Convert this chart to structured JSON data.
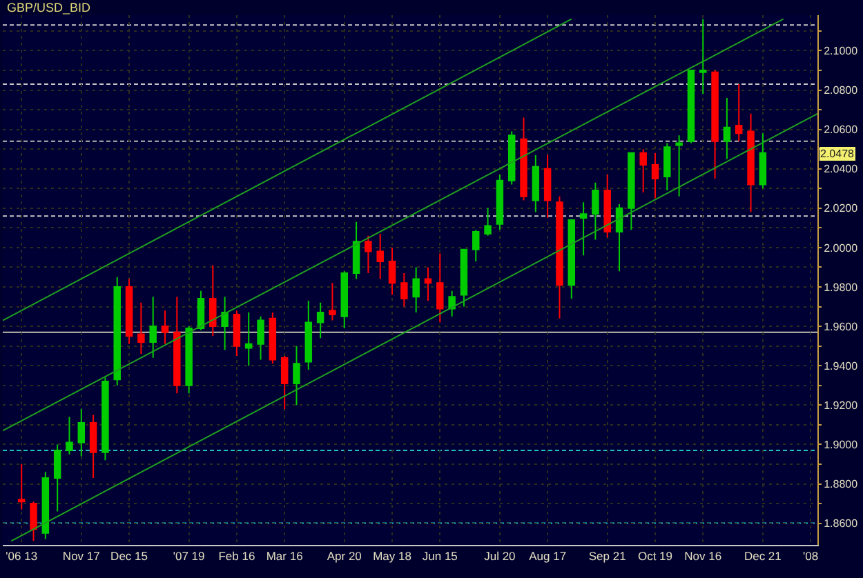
{
  "chart_data": {
    "type": "candlestick",
    "title": "GBP/USD_BID",
    "x": [
      "2006-10-13",
      "2006-10-20",
      "2006-10-27",
      "2006-11-03",
      "2006-11-10",
      "2006-11-17",
      "2006-11-24",
      "2006-12-01",
      "2006-12-08",
      "2006-12-15",
      "2006-12-22",
      "2006-12-29",
      "2007-01-05",
      "2007-01-12",
      "2007-01-19",
      "2007-01-26",
      "2007-02-02",
      "2007-02-09",
      "2007-02-16",
      "2007-02-23",
      "2007-03-02",
      "2007-03-09",
      "2007-03-16",
      "2007-03-23",
      "2007-03-30",
      "2007-04-06",
      "2007-04-13",
      "2007-04-20",
      "2007-04-27",
      "2007-05-04",
      "2007-05-11",
      "2007-05-18",
      "2007-05-25",
      "2007-06-01",
      "2007-06-08",
      "2007-06-15",
      "2007-06-22",
      "2007-06-29",
      "2007-07-06",
      "2007-07-13",
      "2007-07-20",
      "2007-07-27",
      "2007-08-03",
      "2007-08-10",
      "2007-08-17",
      "2007-08-24",
      "2007-08-31",
      "2007-09-07",
      "2007-09-14",
      "2007-09-21",
      "2007-09-28",
      "2007-10-05",
      "2007-10-12",
      "2007-10-19",
      "2007-10-26",
      "2007-11-02",
      "2007-11-09",
      "2007-11-16",
      "2007-11-23",
      "2007-11-30",
      "2007-12-07",
      "2007-12-14",
      "2007-12-21"
    ],
    "ohlc": [
      [
        1.872,
        1.89,
        1.867,
        1.871
      ],
      [
        1.87,
        1.871,
        1.851,
        1.857
      ],
      [
        1.855,
        1.886,
        1.852,
        1.883
      ],
      [
        1.883,
        1.9,
        1.866,
        1.897
      ],
      [
        1.897,
        1.914,
        1.895,
        1.901
      ],
      [
        1.901,
        1.918,
        1.894,
        1.911
      ],
      [
        1.911,
        1.915,
        1.883,
        1.896
      ],
      [
        1.896,
        1.934,
        1.892,
        1.932
      ],
      [
        1.933,
        1.985,
        1.93,
        1.98
      ],
      [
        1.98,
        1.984,
        1.951,
        1.955
      ],
      [
        1.956,
        1.972,
        1.946,
        1.952
      ],
      [
        1.952,
        1.975,
        1.944,
        1.96
      ],
      [
        1.96,
        1.968,
        1.951,
        1.957
      ],
      [
        1.957,
        1.975,
        1.926,
        1.93
      ],
      [
        1.93,
        1.96,
        1.926,
        1.959
      ],
      [
        1.959,
        1.978,
        1.958,
        1.974
      ],
      [
        1.974,
        1.991,
        1.955,
        1.96
      ],
      [
        1.96,
        1.975,
        1.948,
        1.967
      ],
      [
        1.966,
        1.968,
        1.945,
        1.95
      ],
      [
        1.949,
        1.967,
        1.94,
        1.951
      ],
      [
        1.951,
        1.965,
        1.943,
        1.963
      ],
      [
        1.964,
        1.967,
        1.941,
        1.943
      ],
      [
        1.944,
        1.945,
        1.918,
        1.931
      ],
      [
        1.931,
        1.95,
        1.92,
        1.941
      ],
      [
        1.942,
        1.973,
        1.938,
        1.962
      ],
      [
        1.962,
        1.972,
        1.954,
        1.967
      ],
      [
        1.968,
        1.982,
        1.963,
        1.966
      ],
      [
        1.965,
        1.988,
        1.959,
        1.987
      ],
      [
        1.987,
        2.013,
        1.984,
        2.003
      ],
      [
        2.003,
        2.006,
        1.987,
        1.998
      ],
      [
        1.998,
        2.007,
        1.984,
        1.993
      ],
      [
        1.993,
        2.0,
        1.976,
        1.982
      ],
      [
        1.982,
        1.987,
        1.97,
        1.974
      ],
      [
        1.975,
        1.99,
        1.967,
        1.984
      ],
      [
        1.984,
        1.99,
        1.973,
        1.982
      ],
      [
        1.982,
        1.997,
        1.962,
        1.969
      ],
      [
        1.969,
        1.978,
        1.965,
        1.975
      ],
      [
        1.976,
        1.999,
        1.97,
        1.999
      ],
      [
        1.999,
        2.009,
        1.993,
        2.008
      ],
      [
        2.007,
        2.02,
        2.006,
        2.011
      ],
      [
        2.012,
        2.037,
        2.009,
        2.034
      ],
      [
        2.034,
        2.059,
        2.032,
        2.057
      ],
      [
        2.055,
        2.066,
        2.024,
        2.026
      ],
      [
        2.024,
        2.047,
        2.018,
        2.041
      ],
      [
        2.04,
        2.047,
        2.015,
        2.024
      ],
      [
        2.023,
        2.026,
        1.964,
        1.981
      ],
      [
        1.981,
        2.014,
        1.974,
        2.014
      ],
      [
        2.015,
        2.023,
        1.996,
        2.017
      ],
      [
        2.017,
        2.033,
        2.004,
        2.029
      ],
      [
        2.029,
        2.037,
        2.005,
        2.008
      ],
      [
        2.008,
        2.022,
        1.988,
        2.02
      ],
      [
        2.02,
        2.048,
        2.009,
        2.048
      ],
      [
        2.048,
        2.05,
        2.028,
        2.042
      ],
      [
        2.042,
        2.048,
        2.025,
        2.035
      ],
      [
        2.036,
        2.053,
        2.029,
        2.051
      ],
      [
        2.052,
        2.057,
        2.026,
        2.053
      ],
      [
        2.054,
        2.09,
        2.053,
        2.09
      ],
      [
        2.089,
        2.116,
        2.078,
        2.09
      ],
      [
        2.089,
        2.09,
        2.035,
        2.054
      ],
      [
        2.054,
        2.076,
        2.045,
        2.061
      ],
      [
        2.062,
        2.083,
        2.054,
        2.058
      ],
      [
        2.059,
        2.068,
        2.018,
        2.032
      ],
      [
        2.032,
        2.058,
        2.03,
        2.048
      ]
    ],
    "colors": [
      "#ff0000",
      "#ff0000",
      "#00cc00",
      "#00cc00",
      "#00cc00",
      "#00cc00",
      "#ff0000",
      "#00cc00",
      "#00cc00",
      "#ff0000",
      "#ff0000",
      "#00cc00",
      "#ff0000",
      "#ff0000",
      "#00cc00",
      "#00cc00",
      "#ff0000",
      "#00cc00",
      "#ff0000",
      "#00cc00",
      "#00cc00",
      "#ff0000",
      "#ff0000",
      "#00cc00",
      "#00cc00",
      "#00cc00",
      "#ff0000",
      "#00cc00",
      "#00cc00",
      "#ff0000",
      "#ff0000",
      "#ff0000",
      "#ff0000",
      "#00cc00",
      "#ff0000",
      "#ff0000",
      "#00cc00",
      "#00cc00",
      "#00cc00",
      "#00cc00",
      "#00cc00",
      "#00cc00",
      "#ff0000",
      "#00cc00",
      "#ff0000",
      "#ff0000",
      "#00cc00",
      "#00cc00",
      "#00cc00",
      "#ff0000",
      "#00cc00",
      "#00cc00",
      "#ff0000",
      "#ff0000",
      "#00cc00",
      "#00cc00",
      "#00cc00",
      "#00cc00",
      "#ff0000",
      "#00cc00",
      "#ff0000",
      "#ff0000",
      "#00cc00"
    ],
    "series": [
      {
        "type": "line",
        "color": "#1fa01f",
        "x": [
          "2006-10-02",
          "2007-08-31"
        ],
        "values": [
          1.963,
          2.116
        ]
      },
      {
        "type": "line",
        "color": "#1fa01f",
        "x": [
          "2006-10-02",
          "2008-01-02"
        ],
        "values": [
          1.907,
          2.116
        ]
      },
      {
        "type": "line",
        "color": "#1fa01f",
        "x": [
          "2006-10-07",
          "2008-01-22"
        ],
        "values": [
          1.851,
          2.068
        ]
      }
    ],
    "ref_lines": [
      {
        "axis": "y",
        "value": 2.113,
        "color": "#c8c8c8",
        "line_style": "dashed"
      },
      {
        "axis": "y",
        "value": 2.083,
        "color": "#c8c8c8",
        "line_style": "dashed"
      },
      {
        "axis": "y",
        "value": 2.054,
        "color": "#b8b8b0",
        "line_style": "dashed"
      },
      {
        "axis": "y",
        "value": 2.016,
        "color": "#c8c8c8",
        "line_style": "dashed"
      },
      {
        "axis": "y",
        "value": 1.957,
        "color": "#c0c0b0",
        "line_style": "solid"
      },
      {
        "axis": "y",
        "value": 1.897,
        "color": "#20c0c0",
        "line_style": "dashed"
      },
      {
        "axis": "y",
        "value": 1.86,
        "color": "#20c0c0",
        "line_style": "dashed"
      }
    ],
    "annotations": [
      {
        "text": "2.0478",
        "y": 2.0478
      }
    ],
    "xlim": [
      "2006-10-02",
      "2008-01-22"
    ],
    "xticks": [
      {
        "value": "2006-10-13",
        "label": "'06 13"
      },
      {
        "value": "2006-11-17",
        "label": "Nov 17"
      },
      {
        "value": "2006-12-15",
        "label": "Dec 15"
      },
      {
        "value": "2007-01-19",
        "label": "'07 19"
      },
      {
        "value": "2007-02-16",
        "label": "Feb 16"
      },
      {
        "value": "2007-03-16",
        "label": "Mar 16"
      },
      {
        "value": "2007-04-20",
        "label": "Apr 20"
      },
      {
        "value": "2007-05-18",
        "label": "May 18"
      },
      {
        "value": "2007-06-15",
        "label": "Jun 15"
      },
      {
        "value": "2007-07-20",
        "label": "Jul 20"
      },
      {
        "value": "2007-08-17",
        "label": "Aug 17"
      },
      {
        "value": "2007-09-21",
        "label": "Sep 21"
      },
      {
        "value": "2007-10-19",
        "label": "Oct 19"
      },
      {
        "value": "2007-11-16",
        "label": "Nov 16"
      },
      {
        "value": "2007-12-21",
        "label": "Dec 21"
      },
      {
        "value": "2008-01-18",
        "label": "'08"
      }
    ],
    "ylim": [
      1.849,
      2.118
    ],
    "yticks": [
      {
        "value": 1.86,
        "label": "1.8600"
      },
      {
        "value": 1.87,
        "label": null
      },
      {
        "value": 1.88,
        "label": "1.8800"
      },
      {
        "value": 1.89,
        "label": null
      },
      {
        "value": 1.9,
        "label": "1.9000"
      },
      {
        "value": 1.91,
        "label": null
      },
      {
        "value": 1.92,
        "label": "1.9200"
      },
      {
        "value": 1.93,
        "label": null
      },
      {
        "value": 1.94,
        "label": "1.9400"
      },
      {
        "value": 1.95,
        "label": null
      },
      {
        "value": 1.96,
        "label": "1.9600"
      },
      {
        "value": 1.97,
        "label": null
      },
      {
        "value": 1.98,
        "label": "1.9800"
      },
      {
        "value": 1.99,
        "label": null
      },
      {
        "value": 2.0,
        "label": "2.0000"
      },
      {
        "value": 2.01,
        "label": null
      },
      {
        "value": 2.02,
        "label": "2.0200"
      },
      {
        "value": 2.03,
        "label": null
      },
      {
        "value": 2.04,
        "label": "2.0400"
      },
      {
        "value": 2.05,
        "label": null
      },
      {
        "value": 2.06,
        "label": "2.0600"
      },
      {
        "value": 2.07,
        "label": null
      },
      {
        "value": 2.08,
        "label": "2.0800"
      },
      {
        "value": 2.09,
        "label": null
      },
      {
        "value": 2.1,
        "label": "2.1000"
      },
      {
        "value": 2.11,
        "label": null
      }
    ],
    "grid": true
  }
}
